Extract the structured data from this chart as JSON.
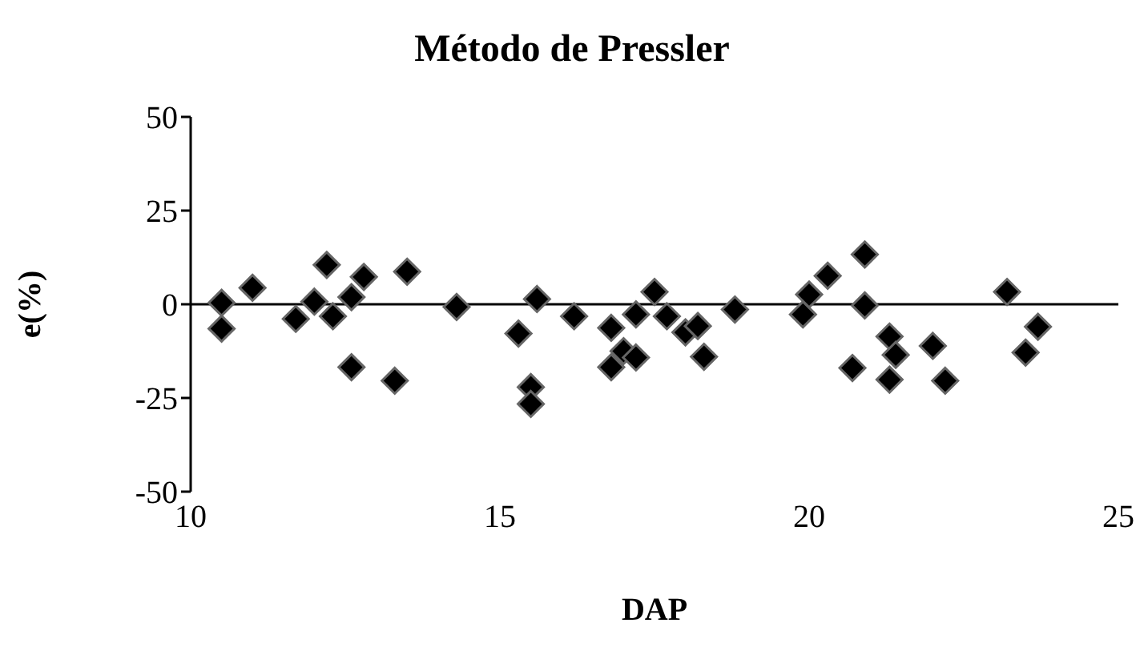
{
  "chart_data": {
    "type": "scatter",
    "title": "Método de Pressler",
    "xlabel": "DAP",
    "ylabel": "e(%)",
    "xlim": [
      10,
      25
    ],
    "xticks": [
      10,
      15,
      20,
      25
    ],
    "ylim": [
      -50,
      50
    ],
    "yticks": [
      -50,
      -25,
      0,
      25,
      50
    ],
    "ref_lines": [
      {
        "axis": "y",
        "value": 0,
        "color": "#000000"
      }
    ],
    "legend": false,
    "marker": "diamond",
    "series": [
      {
        "color": "#000000",
        "x": [
          10.5,
          10.5,
          11.0,
          11.7,
          12.0,
          12.2,
          12.3,
          12.6,
          12.8,
          12.6,
          13.5,
          13.3,
          14.3,
          15.3,
          15.6,
          15.5,
          15.5,
          16.2,
          16.8,
          16.8,
          17.0,
          17.2,
          17.2,
          17.5,
          17.7,
          18.0,
          18.2,
          18.3,
          18.8,
          19.9,
          20.0,
          20.3,
          20.9,
          20.9,
          21.3,
          21.4,
          20.7,
          21.3,
          22.0,
          22.2,
          23.2,
          23.7,
          23.5
        ],
        "values": [
          0.4,
          -6.5,
          4.4,
          -3.9,
          0.7,
          10.5,
          -3.2,
          1.9,
          7.3,
          -16.8,
          8.7,
          -20.4,
          -0.7,
          -7.8,
          1.4,
          -22.1,
          -26.6,
          -3.2,
          -6.3,
          -16.8,
          -12.5,
          -14.2,
          -2.7,
          3.3,
          -3.2,
          -7.5,
          -5.8,
          -14.0,
          -1.4,
          -2.7,
          2.6,
          7.6,
          13.3,
          -0.3,
          -8.6,
          -13.5,
          -17.0,
          -20.1,
          -11.1,
          -20.4,
          3.3,
          -6.0,
          -12.9
        ]
      }
    ]
  }
}
